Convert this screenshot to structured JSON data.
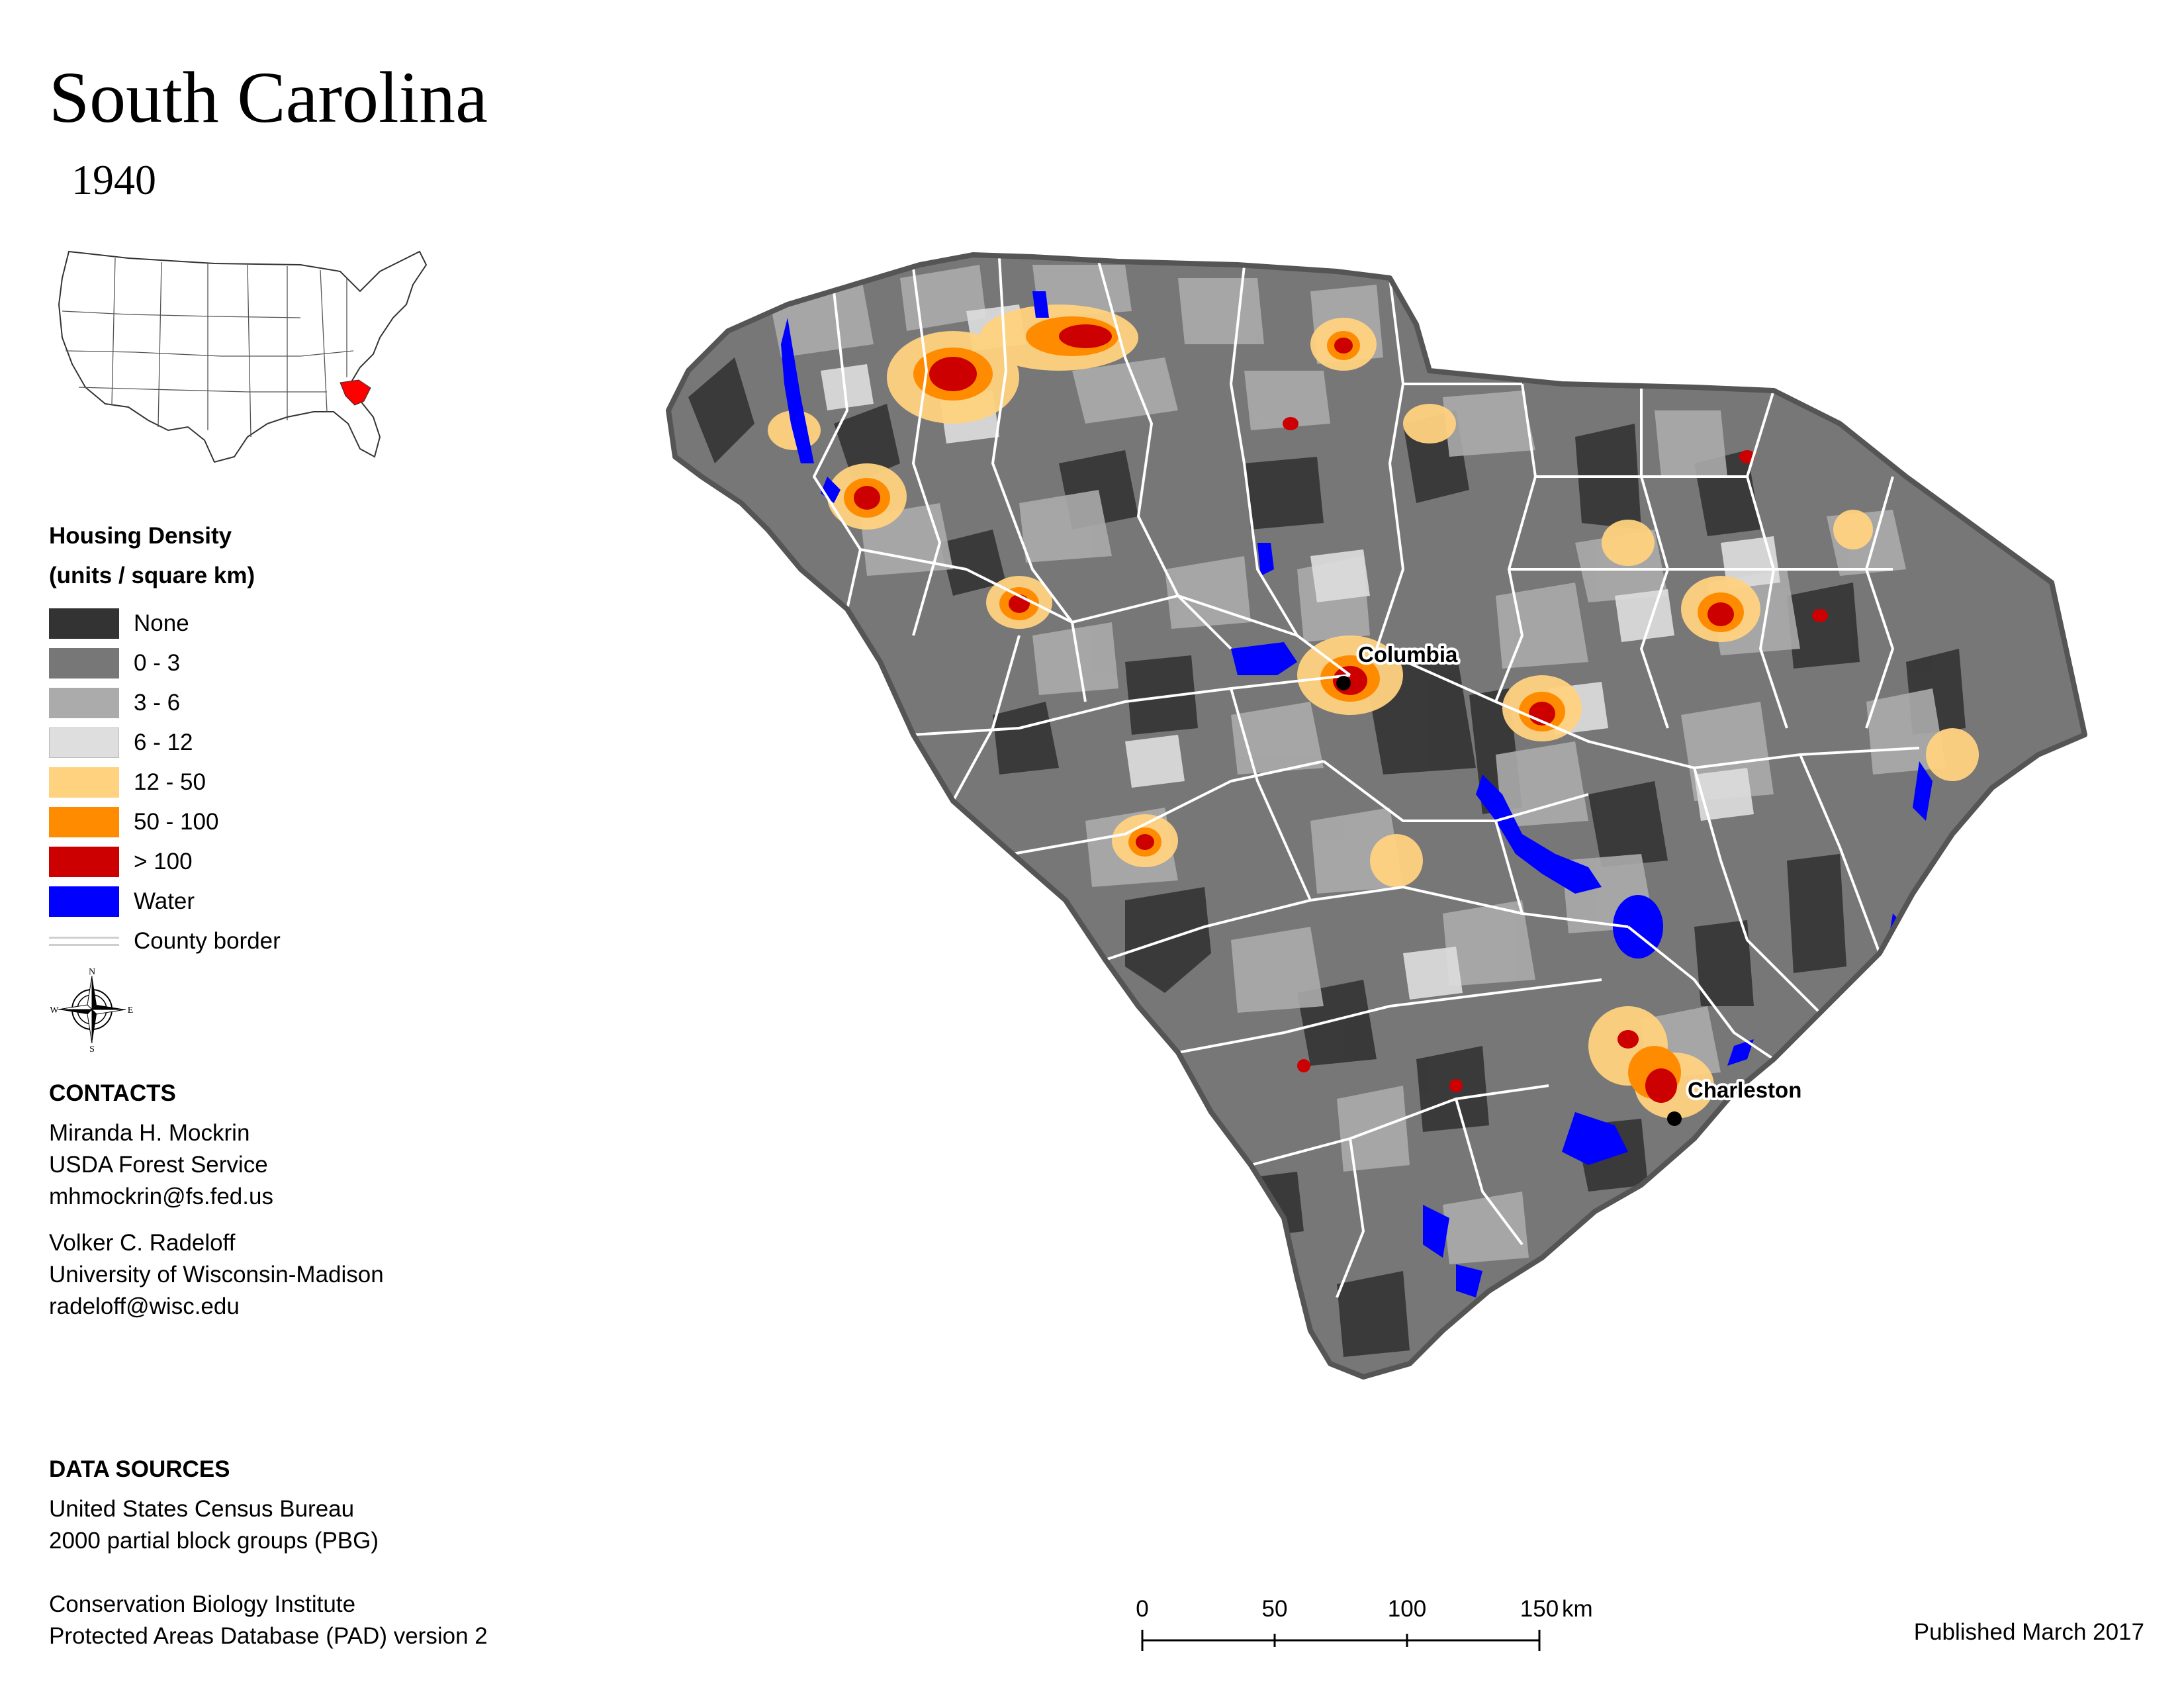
{
  "title": "South Carolina",
  "year": "1940",
  "legend": {
    "title_line1": "Housing Density",
    "title_line2": "(units / square km)",
    "items": [
      {
        "label": "None",
        "color": "#333333"
      },
      {
        "label": "0 - 3",
        "color": "#777777"
      },
      {
        "label": "3 - 6",
        "color": "#ababab"
      },
      {
        "label": "6 - 12",
        "color": "#dedede"
      },
      {
        "label": "12 - 50",
        "color": "#ffd27f"
      },
      {
        "label": "50 - 100",
        "color": "#ff8c00"
      },
      {
        "label": "> 100",
        "color": "#cc0000"
      },
      {
        "label": "Water",
        "color": "#0000ff"
      }
    ],
    "county_border_label": "County border"
  },
  "compass": {
    "n": "N",
    "s": "S",
    "e": "E",
    "w": "W"
  },
  "contacts": {
    "heading": "CONTACTS",
    "person1": {
      "name": "Miranda H. Mockrin",
      "org": "USDA Forest Service",
      "email": "mhmockrin@fs.fed.us"
    },
    "person2": {
      "name": "Volker C. Radeloff",
      "org": "University of Wisconsin-Madison",
      "email": "radeloff@wisc.edu"
    }
  },
  "data_sources": {
    "heading": "DATA SOURCES",
    "lines": [
      "United States Census Bureau",
      "2000 partial block groups (PBG)",
      "Conservation Biology Institute",
      "Protected Areas Database (PAD) version 2"
    ]
  },
  "map_labels": {
    "city1": "Columbia",
    "city2": "Charleston"
  },
  "scale_bar": {
    "ticks": [
      "0",
      "50",
      "100",
      "150"
    ],
    "unit": "km"
  },
  "published": "Published March 2017",
  "colors": {
    "highlight_state": "#ff0000",
    "county_border": "#ffffff",
    "state_outline": "#555555"
  }
}
